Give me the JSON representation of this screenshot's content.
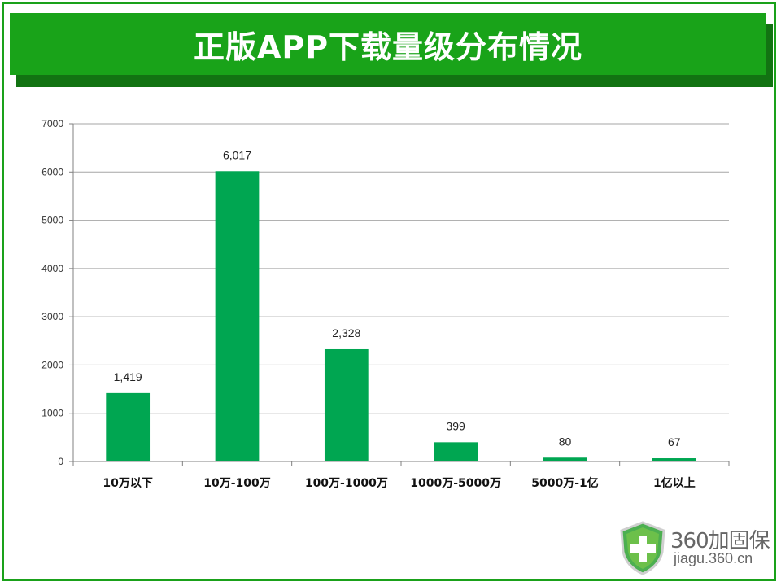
{
  "title": "正版APP下载量级分布情况",
  "colors": {
    "accent": "#19a319",
    "bar": "#00a651",
    "grid": "#a6a6a6"
  },
  "chart_data": {
    "type": "bar",
    "title": "正版APP下载量级分布情况",
    "categories": [
      "10万以下",
      "10万-100万",
      "100万-1000万",
      "1000万-5000万",
      "5000万-1亿",
      "1亿以上"
    ],
    "values": [
      1419,
      6017,
      2328,
      399,
      80,
      67
    ],
    "data_labels": [
      "1,419",
      "6,017",
      "2,328",
      "399",
      "80",
      "67"
    ],
    "y_ticks": [
      0,
      1000,
      2000,
      3000,
      4000,
      5000,
      6000,
      7000
    ],
    "ylim": [
      0,
      7000
    ],
    "xlabel": "",
    "ylabel": "",
    "grid": true,
    "legend": "none"
  },
  "logo": {
    "name": "360加固保",
    "url": "jiagu.360.cn",
    "icon": "shield-plus-icon"
  }
}
